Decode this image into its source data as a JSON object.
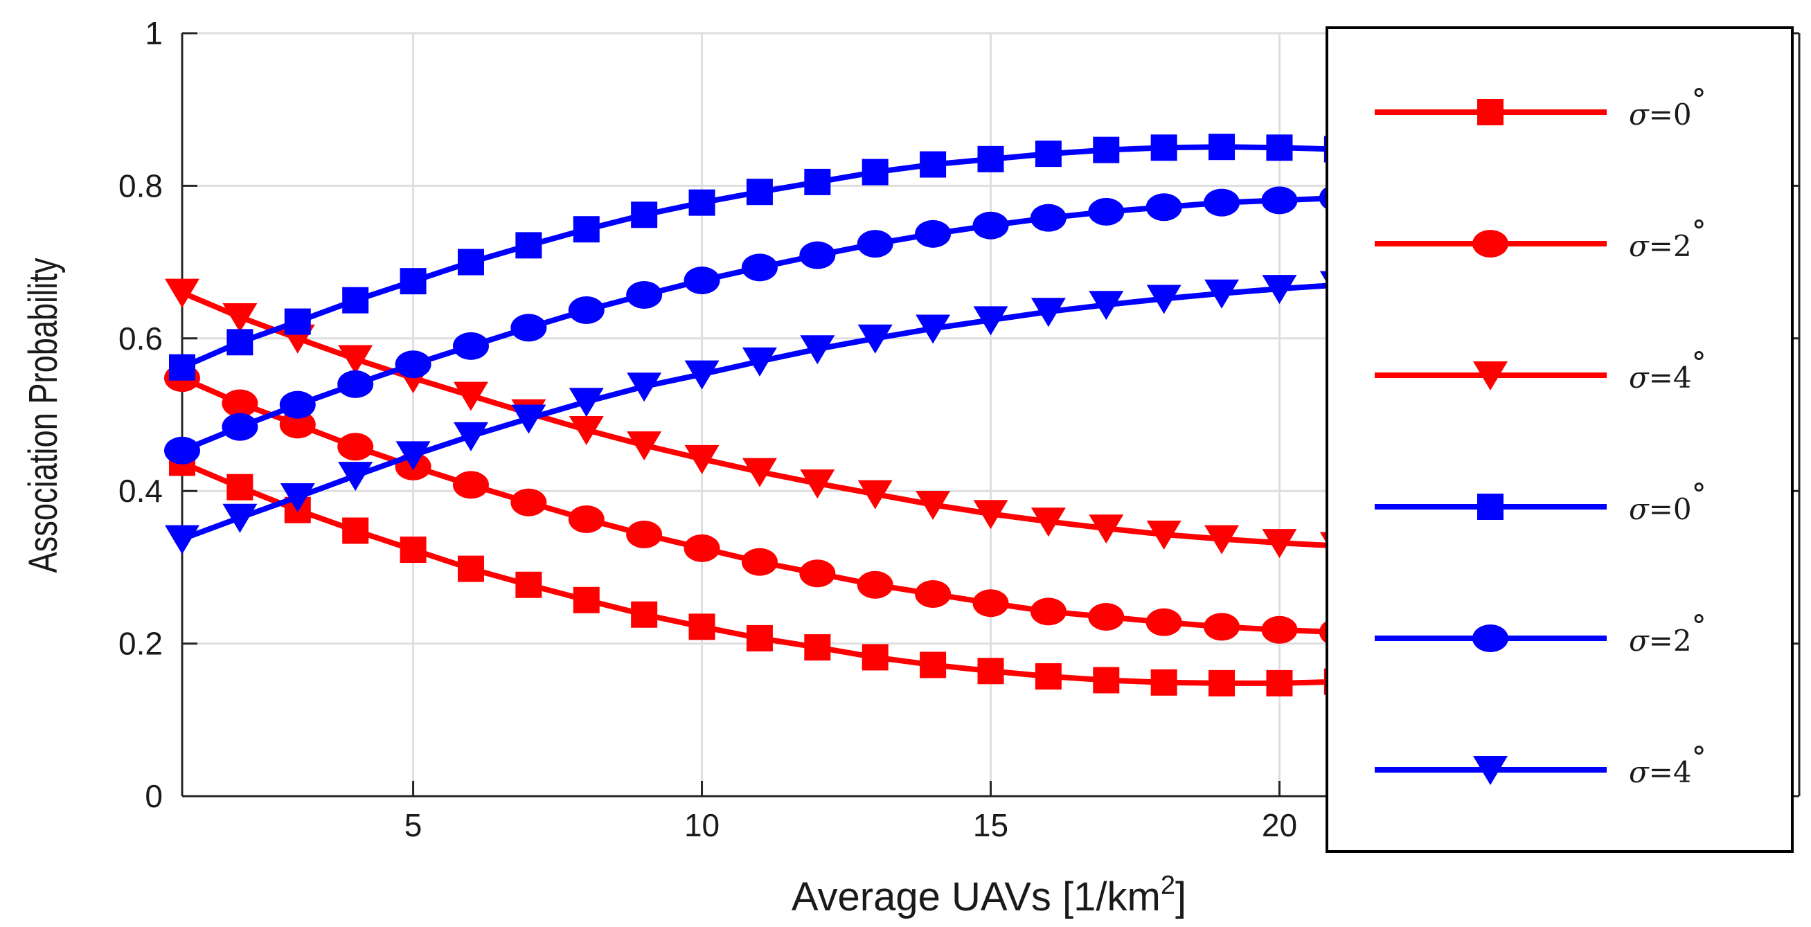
{
  "chart_data": {
    "type": "line",
    "title": "",
    "xlabel": "Average UAVs [1/km",
    "xlabel_sup": "2",
    "xlabel_end": "]",
    "ylabel": "Association Probability",
    "xlim": [
      1,
      29
    ],
    "ylim": [
      0,
      1
    ],
    "xticks": [
      5,
      10,
      15,
      20
    ],
    "xtick_labels": [
      "5",
      "10",
      "15",
      "20"
    ],
    "yticks": [
      0,
      0.2,
      0.4,
      0.6,
      0.8,
      1
    ],
    "ytick_labels": [
      "0",
      "0.2",
      "0.4",
      "0.6",
      "0.8",
      "1"
    ],
    "grid": true,
    "legend_position": "right",
    "x": [
      1,
      2,
      3,
      4,
      5,
      6,
      7,
      8,
      9,
      10,
      11,
      12,
      13,
      14,
      15,
      16,
      17,
      18,
      19,
      20,
      21
    ],
    "series": [
      {
        "name": "σ=0°",
        "symbol": "σ",
        "text": "=0",
        "degree": "°",
        "color": "#ff0000",
        "marker": "square",
        "values": [
          0.437,
          0.405,
          0.375,
          0.348,
          0.323,
          0.298,
          0.277,
          0.257,
          0.238,
          0.222,
          0.207,
          0.195,
          0.182,
          0.172,
          0.164,
          0.157,
          0.152,
          0.149,
          0.148,
          0.148,
          0.15
        ]
      },
      {
        "name": "σ=2°",
        "symbol": "σ",
        "text": "=2",
        "degree": "°",
        "color": "#ff0000",
        "marker": "circle",
        "values": [
          0.548,
          0.515,
          0.487,
          0.458,
          0.432,
          0.408,
          0.385,
          0.363,
          0.343,
          0.325,
          0.307,
          0.292,
          0.277,
          0.265,
          0.253,
          0.242,
          0.235,
          0.228,
          0.222,
          0.218,
          0.215
        ]
      },
      {
        "name": "σ=4°",
        "symbol": "σ",
        "text": "=4",
        "degree": "°",
        "color": "#ff0000",
        "marker": "triangle-down",
        "values": [
          0.66,
          0.628,
          0.6,
          0.573,
          0.548,
          0.525,
          0.502,
          0.48,
          0.46,
          0.442,
          0.425,
          0.41,
          0.396,
          0.382,
          0.37,
          0.36,
          0.351,
          0.343,
          0.337,
          0.332,
          0.328
        ]
      },
      {
        "name": "σ=0°",
        "symbol": "σ",
        "text": "=0",
        "degree": "°",
        "color": "#0000ff",
        "marker": "square",
        "values": [
          0.562,
          0.595,
          0.622,
          0.65,
          0.675,
          0.7,
          0.722,
          0.743,
          0.762,
          0.778,
          0.792,
          0.805,
          0.818,
          0.828,
          0.835,
          0.842,
          0.847,
          0.85,
          0.851,
          0.85,
          0.848
        ]
      },
      {
        "name": "σ=2°",
        "symbol": "σ",
        "text": "=2",
        "degree": "°",
        "color": "#0000ff",
        "marker": "circle",
        "values": [
          0.453,
          0.484,
          0.513,
          0.54,
          0.566,
          0.59,
          0.614,
          0.637,
          0.657,
          0.676,
          0.693,
          0.709,
          0.724,
          0.737,
          0.748,
          0.758,
          0.766,
          0.772,
          0.778,
          0.781,
          0.784
        ]
      },
      {
        "name": "σ=4°",
        "symbol": "σ",
        "text": "=4",
        "degree": "°",
        "color": "#0000ff",
        "marker": "triangle-down",
        "values": [
          0.337,
          0.365,
          0.392,
          0.42,
          0.447,
          0.472,
          0.495,
          0.517,
          0.537,
          0.553,
          0.57,
          0.586,
          0.6,
          0.613,
          0.624,
          0.635,
          0.644,
          0.652,
          0.659,
          0.665,
          0.67
        ]
      }
    ]
  }
}
